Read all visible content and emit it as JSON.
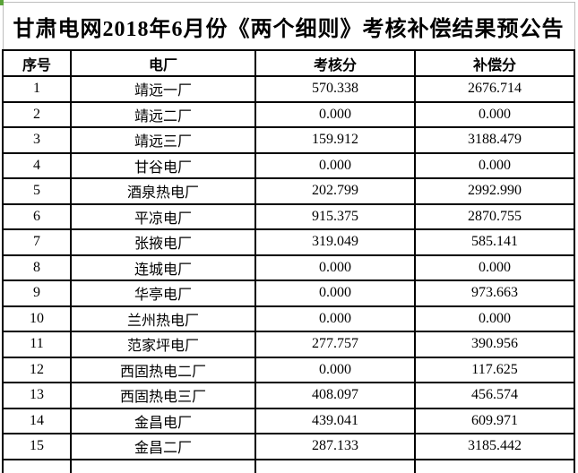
{
  "title": "甘肃电网2018年6月份《两个细则》考核补偿结果预公告",
  "table": {
    "columns": [
      "序号",
      "电厂",
      "考核分",
      "补偿分"
    ],
    "rows": [
      {
        "index": "1",
        "plant": "靖远一厂",
        "assessment": "570.338",
        "compensation": "2676.714"
      },
      {
        "index": "2",
        "plant": "靖远二厂",
        "assessment": "0.000",
        "compensation": "0.000"
      },
      {
        "index": "3",
        "plant": "靖远三厂",
        "assessment": "159.912",
        "compensation": "3188.479"
      },
      {
        "index": "4",
        "plant": "甘谷电厂",
        "assessment": "0.000",
        "compensation": "0.000"
      },
      {
        "index": "5",
        "plant": "酒泉热电厂",
        "assessment": "202.799",
        "compensation": "2992.990"
      },
      {
        "index": "6",
        "plant": "平凉电厂",
        "assessment": "915.375",
        "compensation": "2870.755"
      },
      {
        "index": "7",
        "plant": "张掖电厂",
        "assessment": "319.049",
        "compensation": "585.141"
      },
      {
        "index": "8",
        "plant": "连城电厂",
        "assessment": "0.000",
        "compensation": "0.000"
      },
      {
        "index": "9",
        "plant": "华亭电厂",
        "assessment": "0.000",
        "compensation": "973.663"
      },
      {
        "index": "10",
        "plant": "兰州热电厂",
        "assessment": "0.000",
        "compensation": "0.000"
      },
      {
        "index": "11",
        "plant": "范家坪电厂",
        "assessment": "277.757",
        "compensation": "390.956"
      },
      {
        "index": "12",
        "plant": "西固热电二厂",
        "assessment": "0.000",
        "compensation": "117.625"
      },
      {
        "index": "13",
        "plant": "西固热电三厂",
        "assessment": "408.097",
        "compensation": "456.574"
      },
      {
        "index": "14",
        "plant": "金昌电厂",
        "assessment": "439.041",
        "compensation": "609.971"
      },
      {
        "index": "15",
        "plant": "金昌二厂",
        "assessment": "287.133",
        "compensation": "3185.442"
      }
    ]
  },
  "colors": {
    "border": "#000000",
    "gridline": "#bdbdbd",
    "corner_mark": "#5aa339",
    "background": "#ffffff",
    "text": "#000000"
  }
}
